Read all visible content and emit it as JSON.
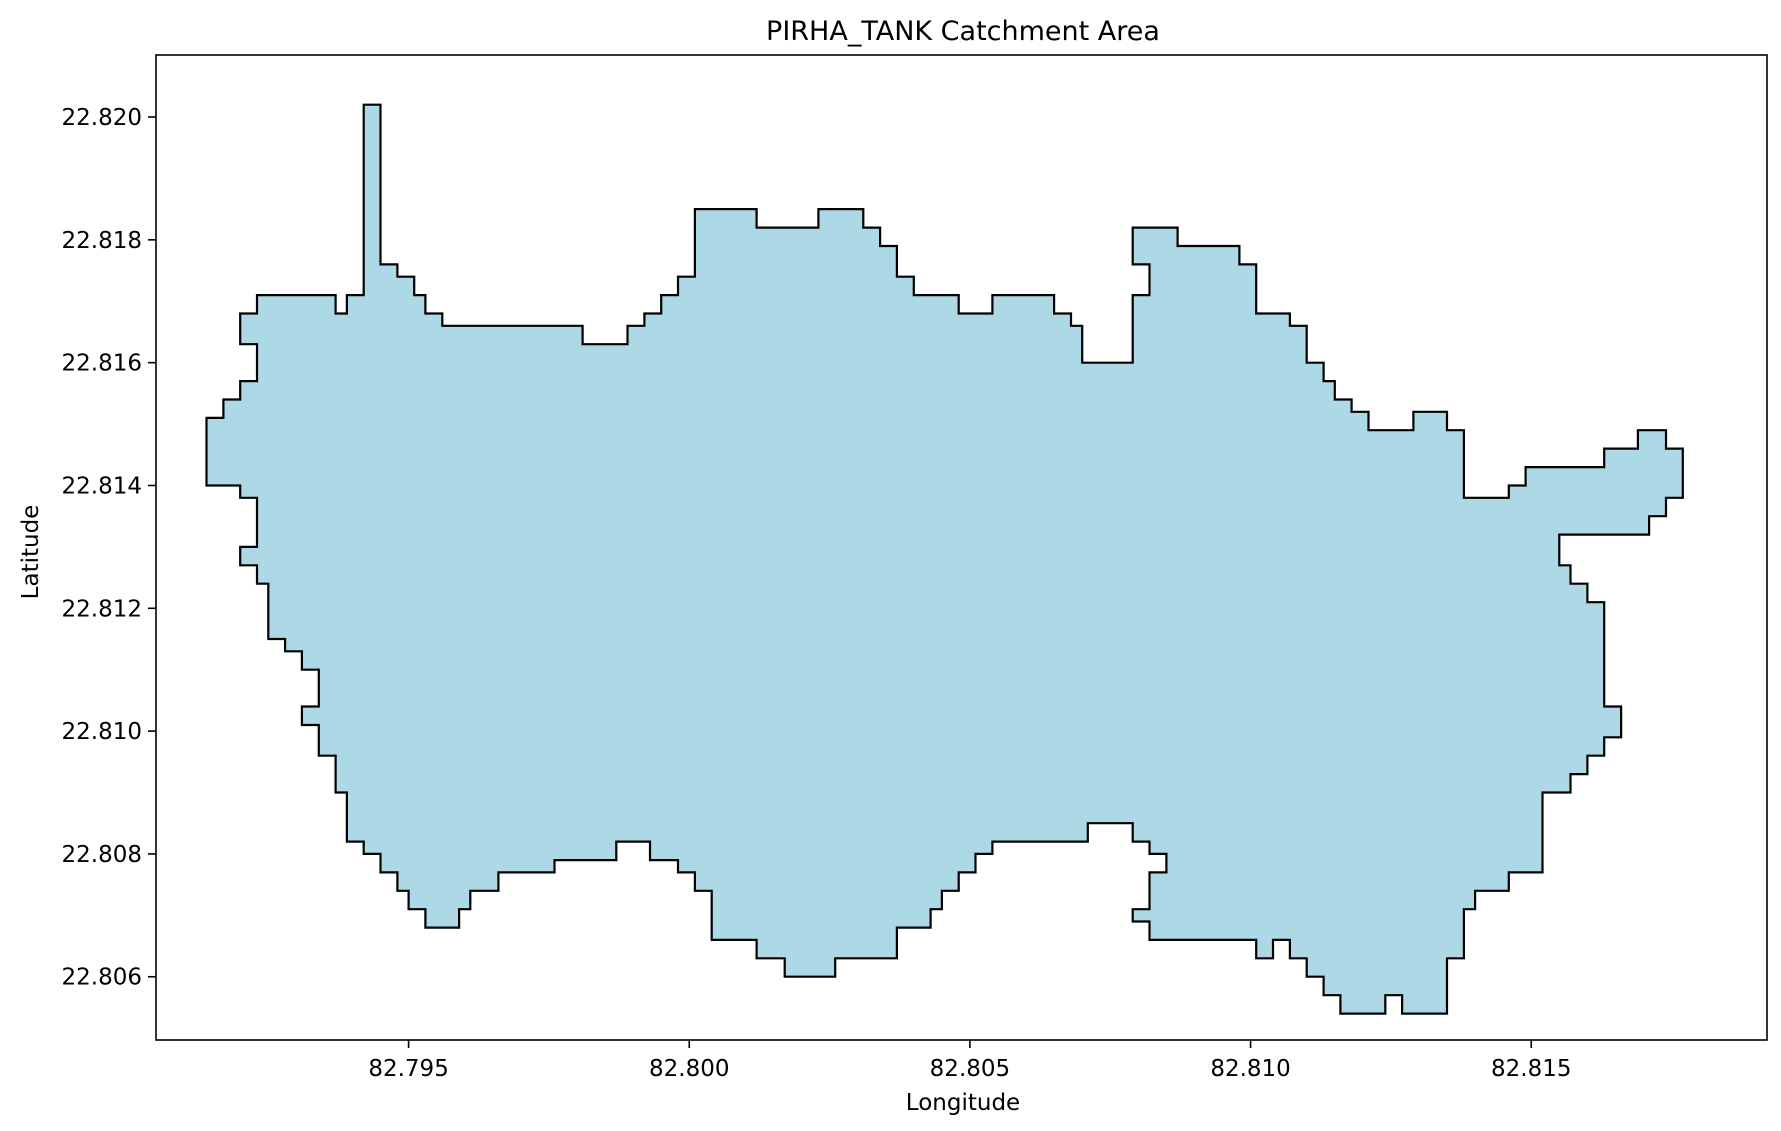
{
  "chart_data": {
    "type": "area",
    "title": "PIRHA_TANK Catchment Area",
    "xlabel": "Longitude",
    "ylabel": "Latitude",
    "xlim": [
      82.7905,
      82.8192
    ],
    "ylim": [
      22.80497,
      22.82101
    ],
    "x_ticks": [
      "82.795",
      "82.800",
      "82.805",
      "82.810",
      "82.815"
    ],
    "y_ticks": [
      "22.806",
      "22.808",
      "22.810",
      "22.812",
      "22.814",
      "22.816",
      "22.818",
      "22.820"
    ],
    "grid": false,
    "legend": "none",
    "fill_color": "#add8e6",
    "edge_color": "#000000",
    "series": [
      {
        "boundary": [
          [
            82.7914,
            22.8151
          ],
          [
            82.7917,
            22.8151
          ],
          [
            82.7917,
            22.8154
          ],
          [
            82.792,
            22.8154
          ],
          [
            82.792,
            22.8157
          ],
          [
            82.7923,
            22.8157
          ],
          [
            82.7923,
            22.8163
          ],
          [
            82.792,
            22.8163
          ],
          [
            82.792,
            22.8168
          ],
          [
            82.7923,
            22.8168
          ],
          [
            82.7923,
            22.8171
          ],
          [
            82.7937,
            22.8171
          ],
          [
            82.7937,
            22.8168
          ],
          [
            82.7939,
            22.8168
          ],
          [
            82.7939,
            22.8171
          ],
          [
            82.7942,
            22.8171
          ],
          [
            82.7942,
            22.8202
          ],
          [
            82.7945,
            22.8202
          ],
          [
            82.7945,
            22.8176
          ],
          [
            82.7948,
            22.8176
          ],
          [
            82.7948,
            22.8174
          ],
          [
            82.7951,
            22.8174
          ],
          [
            82.7951,
            22.8171
          ],
          [
            82.7953,
            22.8171
          ],
          [
            82.7953,
            22.8168
          ],
          [
            82.7956,
            22.8168
          ],
          [
            82.7956,
            22.8166
          ],
          [
            82.7981,
            22.8166
          ],
          [
            82.7981,
            22.8163
          ],
          [
            82.7989,
            22.8163
          ],
          [
            82.7989,
            22.8166
          ],
          [
            82.7992,
            22.8166
          ],
          [
            82.7992,
            22.8168
          ],
          [
            82.7995,
            22.8168
          ],
          [
            82.7995,
            22.8171
          ],
          [
            82.7998,
            22.8171
          ],
          [
            82.7998,
            22.8174
          ],
          [
            82.8001,
            22.8174
          ],
          [
            82.8001,
            22.8185
          ],
          [
            82.8012,
            22.8185
          ],
          [
            82.8012,
            22.8182
          ],
          [
            82.8023,
            22.8182
          ],
          [
            82.8023,
            22.8185
          ],
          [
            82.8031,
            22.8185
          ],
          [
            82.8031,
            22.8182
          ],
          [
            82.8034,
            22.8182
          ],
          [
            82.8034,
            22.8179
          ],
          [
            82.8037,
            22.8179
          ],
          [
            82.8037,
            22.8174
          ],
          [
            82.804,
            22.8174
          ],
          [
            82.804,
            22.8171
          ],
          [
            82.8048,
            22.8171
          ],
          [
            82.8048,
            22.8168
          ],
          [
            82.8054,
            22.8168
          ],
          [
            82.8054,
            22.8171
          ],
          [
            82.8065,
            22.8171
          ],
          [
            82.8065,
            22.8168
          ],
          [
            82.8068,
            22.8168
          ],
          [
            82.8068,
            22.8166
          ],
          [
            82.807,
            22.8166
          ],
          [
            82.807,
            22.816
          ],
          [
            82.8079,
            22.816
          ],
          [
            82.8079,
            22.8171
          ],
          [
            82.8082,
            22.8171
          ],
          [
            82.8082,
            22.8176
          ],
          [
            82.8079,
            22.8176
          ],
          [
            82.8079,
            22.8182
          ],
          [
            82.8087,
            22.8182
          ],
          [
            82.8087,
            22.8179
          ],
          [
            82.8098,
            22.8179
          ],
          [
            82.8098,
            22.8176
          ],
          [
            82.8101,
            22.8176
          ],
          [
            82.8101,
            22.8168
          ],
          [
            82.8107,
            22.8168
          ],
          [
            82.8107,
            22.8166
          ],
          [
            82.811,
            22.8166
          ],
          [
            82.811,
            22.816
          ],
          [
            82.8113,
            22.816
          ],
          [
            82.8113,
            22.8157
          ],
          [
            82.8115,
            22.8157
          ],
          [
            82.8115,
            22.8154
          ],
          [
            82.8118,
            22.8154
          ],
          [
            82.8118,
            22.8152
          ],
          [
            82.8121,
            22.8152
          ],
          [
            82.8121,
            22.8149
          ],
          [
            82.8129,
            22.8149
          ],
          [
            82.8129,
            22.8152
          ],
          [
            82.8135,
            22.8152
          ],
          [
            82.8135,
            22.8149
          ],
          [
            82.8138,
            22.8149
          ],
          [
            82.8138,
            22.8138
          ],
          [
            82.8146,
            22.8138
          ],
          [
            82.8146,
            22.814
          ],
          [
            82.8149,
            22.814
          ],
          [
            82.8149,
            22.8143
          ],
          [
            82.8163,
            22.8143
          ],
          [
            82.8163,
            22.8146
          ],
          [
            82.8169,
            22.8146
          ],
          [
            82.8169,
            22.8149
          ],
          [
            82.8174,
            22.8149
          ],
          [
            82.8174,
            22.8146
          ],
          [
            82.8177,
            22.8146
          ],
          [
            82.8177,
            22.8138
          ],
          [
            82.8174,
            22.8138
          ],
          [
            82.8174,
            22.8135
          ],
          [
            82.8171,
            22.8135
          ],
          [
            82.8171,
            22.8132
          ],
          [
            82.8155,
            22.8132
          ],
          [
            82.8155,
            22.8127
          ],
          [
            82.8157,
            22.8127
          ],
          [
            82.8157,
            22.8124
          ],
          [
            82.816,
            22.8124
          ],
          [
            82.816,
            22.8121
          ],
          [
            82.8163,
            22.8121
          ],
          [
            82.8163,
            22.8104
          ],
          [
            82.8166,
            22.8104
          ],
          [
            82.8166,
            22.8099
          ],
          [
            82.8163,
            22.8099
          ],
          [
            82.8163,
            22.8096
          ],
          [
            82.816,
            22.8096
          ],
          [
            82.816,
            22.8093
          ],
          [
            82.8157,
            22.8093
          ],
          [
            82.8157,
            22.809
          ],
          [
            82.8152,
            22.809
          ],
          [
            82.8152,
            22.8077
          ],
          [
            82.8146,
            22.8077
          ],
          [
            82.8146,
            22.8074
          ],
          [
            82.814,
            22.8074
          ],
          [
            82.814,
            22.8071
          ],
          [
            82.8138,
            22.8071
          ],
          [
            82.8138,
            22.8063
          ],
          [
            82.8135,
            22.8063
          ],
          [
            82.8135,
            22.8054
          ],
          [
            82.8127,
            22.8054
          ],
          [
            82.8127,
            22.8057
          ],
          [
            82.8124,
            22.8057
          ],
          [
            82.8124,
            22.8054
          ],
          [
            82.8116,
            22.8054
          ],
          [
            82.8116,
            22.8057
          ],
          [
            82.8113,
            22.8057
          ],
          [
            82.8113,
            22.806
          ],
          [
            82.811,
            22.806
          ],
          [
            82.811,
            22.8063
          ],
          [
            82.8107,
            22.8063
          ],
          [
            82.8107,
            22.8066
          ],
          [
            82.8104,
            22.8066
          ],
          [
            82.8104,
            22.8063
          ],
          [
            82.8101,
            22.8063
          ],
          [
            82.8101,
            22.8066
          ],
          [
            82.8082,
            22.8066
          ],
          [
            82.8082,
            22.8069
          ],
          [
            82.8079,
            22.8069
          ],
          [
            82.8079,
            22.8071
          ],
          [
            82.8082,
            22.8071
          ],
          [
            82.8082,
            22.8077
          ],
          [
            82.8085,
            22.8077
          ],
          [
            82.8085,
            22.808
          ],
          [
            82.8082,
            22.808
          ],
          [
            82.8082,
            22.8082
          ],
          [
            82.8079,
            22.8082
          ],
          [
            82.8079,
            22.8085
          ],
          [
            82.8071,
            22.8085
          ],
          [
            82.8071,
            22.8082
          ],
          [
            82.8054,
            22.8082
          ],
          [
            82.8054,
            22.808
          ],
          [
            82.8051,
            22.808
          ],
          [
            82.8051,
            22.8077
          ],
          [
            82.8048,
            22.8077
          ],
          [
            82.8048,
            22.8074
          ],
          [
            82.8045,
            22.8074
          ],
          [
            82.8045,
            22.8071
          ],
          [
            82.8043,
            22.8071
          ],
          [
            82.8043,
            22.8068
          ],
          [
            82.8037,
            22.8068
          ],
          [
            82.8037,
            22.8063
          ],
          [
            82.8026,
            22.8063
          ],
          [
            82.8026,
            22.806
          ],
          [
            82.8023,
            22.806
          ],
          [
            82.8023,
            22.806
          ],
          [
            82.8017,
            22.806
          ],
          [
            82.8017,
            22.8063
          ],
          [
            82.8012,
            22.8063
          ],
          [
            82.8012,
            22.8066
          ],
          [
            82.8004,
            22.8066
          ],
          [
            82.8004,
            22.8074
          ],
          [
            82.8001,
            22.8074
          ],
          [
            82.8001,
            22.8077
          ],
          [
            82.7998,
            22.8077
          ],
          [
            82.7998,
            22.8079
          ],
          [
            82.7993,
            22.8079
          ],
          [
            82.7993,
            22.8082
          ],
          [
            82.7987,
            22.8082
          ],
          [
            82.7987,
            22.8079
          ],
          [
            82.7976,
            22.8079
          ],
          [
            82.7976,
            22.8077
          ],
          [
            82.7966,
            22.8077
          ],
          [
            82.7966,
            22.8074
          ],
          [
            82.7961,
            22.8074
          ],
          [
            82.7961,
            22.8071
          ],
          [
            82.7959,
            22.8071
          ],
          [
            82.7959,
            22.8068
          ],
          [
            82.7953,
            22.8068
          ],
          [
            82.7953,
            22.8071
          ],
          [
            82.795,
            22.8071
          ],
          [
            82.795,
            22.8074
          ],
          [
            82.7948,
            22.8074
          ],
          [
            82.7948,
            22.8077
          ],
          [
            82.7945,
            22.8077
          ],
          [
            82.7945,
            22.808
          ],
          [
            82.7942,
            22.808
          ],
          [
            82.7942,
            22.8082
          ],
          [
            82.7939,
            22.8082
          ],
          [
            82.7939,
            22.809
          ],
          [
            82.7937,
            22.809
          ],
          [
            82.7937,
            22.8096
          ],
          [
            82.7934,
            22.8096
          ],
          [
            82.7934,
            22.8101
          ],
          [
            82.7931,
            22.8101
          ],
          [
            82.7931,
            22.8104
          ],
          [
            82.7934,
            22.8104
          ],
          [
            82.7934,
            22.811
          ],
          [
            82.7931,
            22.811
          ],
          [
            82.7931,
            22.8113
          ],
          [
            82.7928,
            22.8113
          ],
          [
            82.7928,
            22.8115
          ],
          [
            82.7925,
            22.8115
          ],
          [
            82.7925,
            22.8124
          ],
          [
            82.7923,
            22.8124
          ],
          [
            82.7923,
            22.8127
          ],
          [
            82.792,
            22.8127
          ],
          [
            82.792,
            22.813
          ],
          [
            82.7923,
            22.813
          ],
          [
            82.7923,
            22.8138
          ],
          [
            82.792,
            22.8138
          ],
          [
            82.792,
            22.814
          ],
          [
            82.7914,
            22.814
          ]
        ]
      }
    ]
  }
}
